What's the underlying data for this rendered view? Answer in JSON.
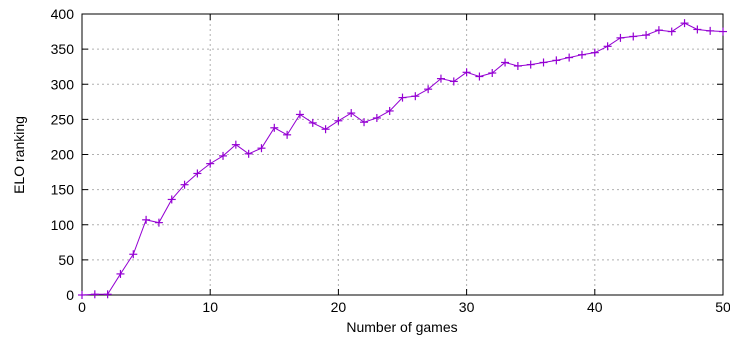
{
  "chart_data": {
    "type": "line",
    "title": "",
    "xlabel": "Number of games",
    "ylabel": "ELO ranking",
    "xlim": [
      0,
      50
    ],
    "ylim": [
      0,
      400
    ],
    "xticks": [
      0,
      10,
      20,
      30,
      40,
      50
    ],
    "yticks": [
      0,
      50,
      100,
      150,
      200,
      250,
      300,
      350,
      400
    ],
    "grid": true,
    "legend": "none",
    "marker": "plus",
    "color": "#9400d3",
    "x": [
      0,
      1,
      2,
      3,
      4,
      5,
      6,
      7,
      8,
      9,
      10,
      11,
      12,
      13,
      14,
      15,
      16,
      17,
      18,
      19,
      20,
      21,
      22,
      23,
      24,
      25,
      26,
      27,
      28,
      29,
      30,
      31,
      32,
      33,
      34,
      35,
      36,
      37,
      38,
      39,
      40,
      41,
      42,
      43,
      44,
      45,
      46,
      47,
      48,
      49,
      50
    ],
    "y": [
      0,
      1,
      1,
      30,
      58,
      107,
      103,
      136,
      157,
      173,
      187,
      198,
      214,
      201,
      209,
      238,
      228,
      257,
      245,
      236,
      248,
      259,
      246,
      252,
      262,
      281,
      283,
      293,
      308,
      304,
      317,
      311,
      316,
      331,
      326,
      328,
      331,
      334,
      338,
      342,
      345,
      354,
      366,
      368,
      370,
      377,
      375,
      387,
      378,
      376,
      375
    ]
  }
}
